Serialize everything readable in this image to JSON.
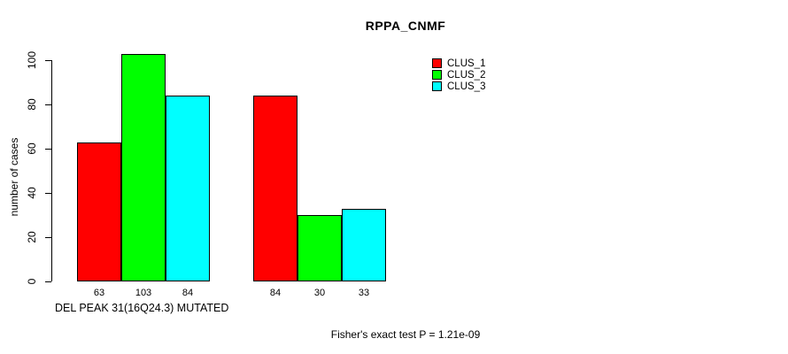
{
  "title": "RPPA_CNMF",
  "chart_data": {
    "type": "bar",
    "title": "RPPA_CNMF",
    "ylabel": "number of cases",
    "xlabel": "DEL PEAK 31(16Q24.3) MUTATED",
    "ylim": [
      0,
      103
    ],
    "yticks": [
      0,
      20,
      40,
      60,
      80,
      100
    ],
    "grid": false,
    "legend_position": "top-right",
    "bar_value_labels_shown": true,
    "groups": 2,
    "series": [
      {
        "name": "CLUS_1",
        "color": "#ff0000",
        "values": [
          63,
          84
        ]
      },
      {
        "name": "CLUS_2",
        "color": "#00ff00",
        "values": [
          103,
          30
        ]
      },
      {
        "name": "CLUS_3",
        "color": "#00ffff",
        "values": [
          84,
          33
        ]
      }
    ]
  },
  "footer": {
    "note": "Fisher's exact test P = 1.21e-09"
  },
  "colors": {
    "axis": "#000000",
    "text": "#000000",
    "background": "#ffffff"
  }
}
